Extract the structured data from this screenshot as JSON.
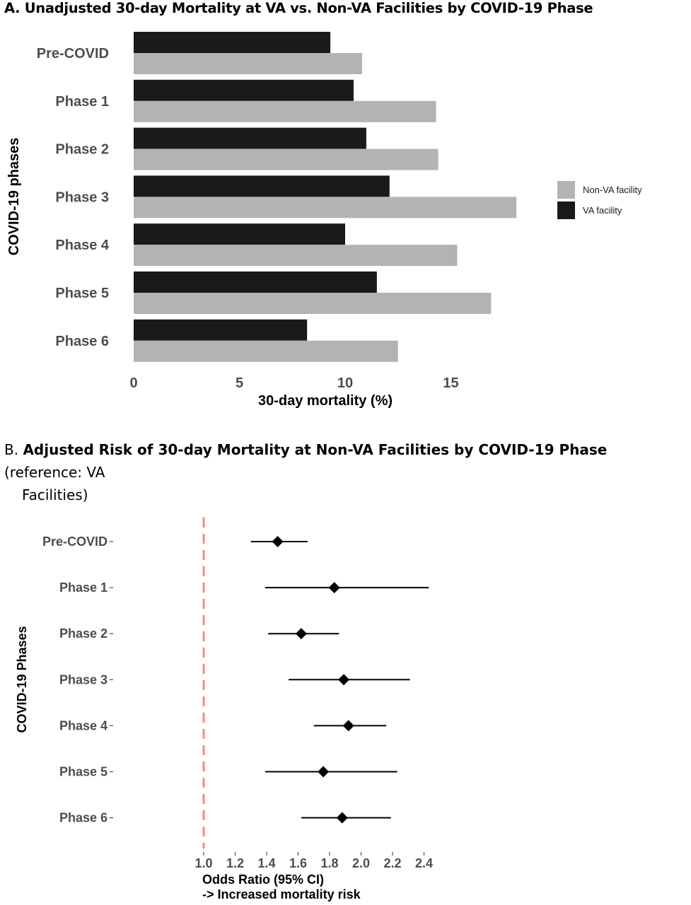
{
  "chart_data": [
    {
      "type": "bar",
      "orientation": "horizontal",
      "title": "A. Unadjusted 30-day Mortality at VA vs. Non-VA Facilities by COVID-19 Phase",
      "xlabel": "30-day mortality (%)",
      "ylabel": "COVID-19 phases",
      "categories": [
        "Pre-COVID",
        "Phase 1",
        "Phase 2",
        "Phase 3",
        "Phase 4",
        "Phase 5",
        "Phase 6"
      ],
      "series": [
        {
          "name": "VA facility",
          "color": "#1a1a1a",
          "values": [
            9.3,
            10.4,
            11.0,
            12.1,
            10.0,
            11.5,
            8.2
          ]
        },
        {
          "name": "Non-VA facility",
          "color": "#b3b3b3",
          "values": [
            10.8,
            14.3,
            14.4,
            18.1,
            15.3,
            16.9,
            12.5
          ]
        }
      ],
      "xticks": [
        0,
        5,
        10,
        15
      ],
      "xlim": [
        0,
        18.8
      ],
      "legend": {
        "position": "right",
        "entries": [
          "Non-VA facility",
          "VA facility"
        ]
      },
      "grid": false
    },
    {
      "type": "scatter",
      "subtype": "forest",
      "title_parts": {
        "label": "B.",
        "bold": "Adjusted Risk of 30-day Mortality at Non-VA Facilities by COVID-19 Phase",
        "rest_line1": " (reference: VA",
        "rest_line2": "Facilities)"
      },
      "xlabel_line1": "Odds Ratio (95% CI)",
      "xlabel_line2": "-> Increased mortality risk",
      "ylabel": "COVID-19 Phases",
      "categories": [
        "Pre-COVID",
        "Phase 1",
        "Phase 2",
        "Phase 3",
        "Phase 4",
        "Phase 5",
        "Phase 6"
      ],
      "estimates": [
        1.47,
        1.83,
        1.62,
        1.89,
        1.92,
        1.76,
        1.88
      ],
      "ci_lower": [
        1.3,
        1.39,
        1.41,
        1.54,
        1.7,
        1.39,
        1.62
      ],
      "ci_upper": [
        1.66,
        2.43,
        1.86,
        2.31,
        2.16,
        2.23,
        2.19
      ],
      "reference_line": 1.0,
      "reference_color": "#ef8a8a",
      "xticks": [
        "1.0",
        "1.2",
        "1.4",
        "1.6",
        "1.8",
        "2.0",
        "2.2",
        "2.4"
      ],
      "xlim": [
        0.93,
        2.47
      ],
      "grid": false
    }
  ]
}
